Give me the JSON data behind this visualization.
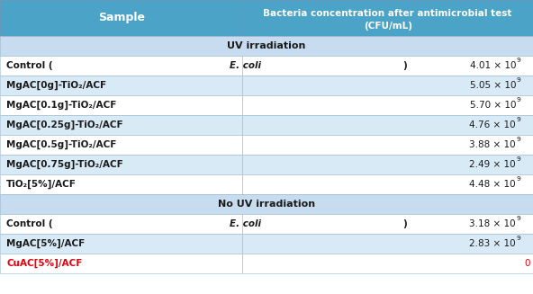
{
  "header_bg": "#4BA3C7",
  "subheader_bg": "#C8DCF0",
  "row_bg_white": "#FFFFFF",
  "row_bg_blue": "#D9EAF7",
  "header_text_color": "#FFFFFF",
  "subheader_text_color": "#1A1A1A",
  "normal_text_color": "#1A1A1A",
  "highlight_text_color": "#E8000D",
  "col1_header": "Sample",
  "col2_header_line1": "Bacteria concentration after antimicrobial test",
  "col2_header_line2": "(CFU/mL)",
  "section1_label": "UV irradiation",
  "section2_label": "No UV irradiation",
  "rows_uv": [
    [
      "Control (E. coli)",
      "4.01",
      "9",
      false
    ],
    [
      "MgAC[0g]-TiO₂/ACF",
      "5.05",
      "9",
      false
    ],
    [
      "MgAC[0.1g]-TiO₂/ACF",
      "5.70",
      "9",
      false
    ],
    [
      "MgAC[0.25g]-TiO₂/ACF",
      "4.76",
      "9",
      false
    ],
    [
      "MgAC[0.5g]-TiO₂/ACF",
      "3.88",
      "9",
      false
    ],
    [
      "MgAC[0.75g]-TiO₂/ACF",
      "2.49",
      "9",
      false
    ],
    [
      "TiO₂[5%]/ACF",
      "4.48",
      "9",
      false
    ]
  ],
  "rows_nouv": [
    [
      "Control (E. coli)",
      "3.18",
      "9",
      false
    ],
    [
      "MgAC[5%]/ACF",
      "2.83",
      "9",
      false
    ],
    [
      "CuAC[5%]/ACF",
      "0",
      "",
      true
    ]
  ],
  "col_split": 0.455,
  "figsize": [
    5.92,
    3.27
  ],
  "dpi": 100
}
